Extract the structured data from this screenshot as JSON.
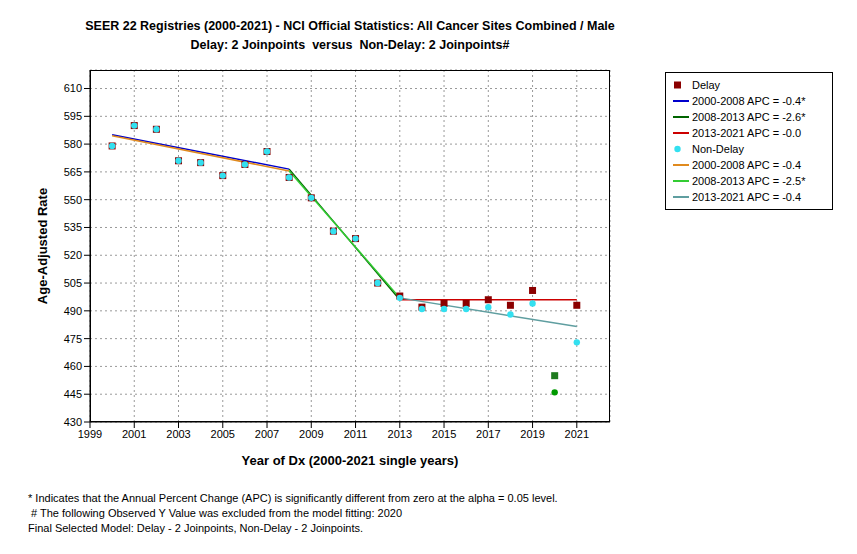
{
  "chart_data": {
    "type": "scatter",
    "title": "SEER 22 Registries (2000-2021) - NCI Official Statistics: All Cancer Sites Combined / Male",
    "subtitle": "Delay: 2 Joinpoints  versus  Non-Delay: 2 Joinpoints#",
    "x_label": "Year of Dx (2000-2021 single years)",
    "y_label": "Age-Adjusted Rate",
    "xlim": [
      1999,
      2022.5
    ],
    "xticks": [
      1999,
      2001,
      2003,
      2005,
      2007,
      2009,
      2011,
      2013,
      2015,
      2017,
      2019,
      2021
    ],
    "ylim": [
      430,
      620
    ],
    "yticks": [
      430,
      445,
      460,
      475,
      490,
      505,
      520,
      535,
      550,
      565,
      580,
      595,
      610
    ],
    "grid": true,
    "legend": "right",
    "annotations": [
      "* Indicates that the Annual Percent Change (APC) is significantly different from zero at the alpha = 0.05 level.",
      " # The following Observed Y Value was excluded from the model fitting: 2020",
      "Final Selected Model: Delay - 2 Joinpoints, Non-Delay - 2 Joinpoints."
    ],
    "series": [
      {
        "name": "Delay",
        "type": "scatter",
        "marker": "square",
        "color": "#8B0000",
        "x": [
          2000,
          2001,
          2002,
          2003,
          2004,
          2005,
          2006,
          2007,
          2008,
          2009,
          2010,
          2011,
          2012,
          2013,
          2014,
          2015,
          2016,
          2017,
          2018,
          2019,
          2020,
          2021
        ],
        "values": [
          579,
          590,
          588,
          571,
          570,
          563,
          569,
          576,
          562,
          551,
          533,
          529,
          505,
          498,
          492,
          494,
          494,
          496,
          493,
          501,
          455,
          493
        ],
        "colors": [
          "#8B0000",
          "#8B0000",
          "#8B0000",
          "#8B0000",
          "#8B0000",
          "#8B0000",
          "#8B0000",
          "#8B0000",
          "#8B0000",
          "#8B0000",
          "#8B0000",
          "#8B0000",
          "#8B0000",
          "#8B0000",
          "#8B0000",
          "#8B0000",
          "#8B0000",
          "#8B0000",
          "#8B0000",
          "#8B0000",
          "#1E7B1E",
          "#8B0000"
        ]
      },
      {
        "name": "2000-2008 APC = -0.4*",
        "type": "line",
        "color": "#0000CC",
        "x": [
          2000,
          2008
        ],
        "values": [
          585,
          566.5
        ]
      },
      {
        "name": "2008-2013 APC = -2.6*",
        "type": "line",
        "color": "#006400",
        "x": [
          2008,
          2013
        ],
        "values": [
          566.5,
          496
        ]
      },
      {
        "name": "2013-2021 APC = -0.0",
        "type": "line",
        "color": "#CC0000",
        "x": [
          2013,
          2021
        ],
        "values": [
          496,
          496
        ]
      },
      {
        "name": "Non-Delay",
        "type": "scatter",
        "marker": "circle",
        "color": "#33E0F0",
        "x": [
          2000,
          2001,
          2002,
          2003,
          2004,
          2005,
          2006,
          2007,
          2008,
          2009,
          2010,
          2011,
          2012,
          2013,
          2014,
          2015,
          2016,
          2017,
          2018,
          2019,
          2020,
          2021
        ],
        "values": [
          579,
          590,
          588,
          571,
          570,
          563,
          569,
          576,
          562,
          551,
          533,
          529,
          505,
          497,
          491,
          491,
          491,
          492,
          488,
          494,
          446,
          473
        ],
        "colors": [
          "#33E0F0",
          "#33E0F0",
          "#33E0F0",
          "#33E0F0",
          "#33E0F0",
          "#33E0F0",
          "#33E0F0",
          "#33E0F0",
          "#33E0F0",
          "#33E0F0",
          "#33E0F0",
          "#33E0F0",
          "#33E0F0",
          "#33E0F0",
          "#33E0F0",
          "#33E0F0",
          "#33E0F0",
          "#33E0F0",
          "#33E0F0",
          "#33E0F0",
          "#009900",
          "#33E0F0"
        ]
      },
      {
        "name": "2000-2008 APC = -0.4",
        "type": "line",
        "color": "#E08A1E",
        "x": [
          2000,
          2008
        ],
        "values": [
          584.5,
          565.5
        ]
      },
      {
        "name": "2008-2013 APC = -2.5*",
        "type": "line",
        "color": "#33CC33",
        "x": [
          2008,
          2013
        ],
        "values": [
          565.5,
          497
        ]
      },
      {
        "name": "2013-2021 APC = -0.4",
        "type": "line",
        "color": "#5F9EA0",
        "x": [
          2013,
          2021
        ],
        "values": [
          497,
          481.5
        ]
      }
    ]
  }
}
